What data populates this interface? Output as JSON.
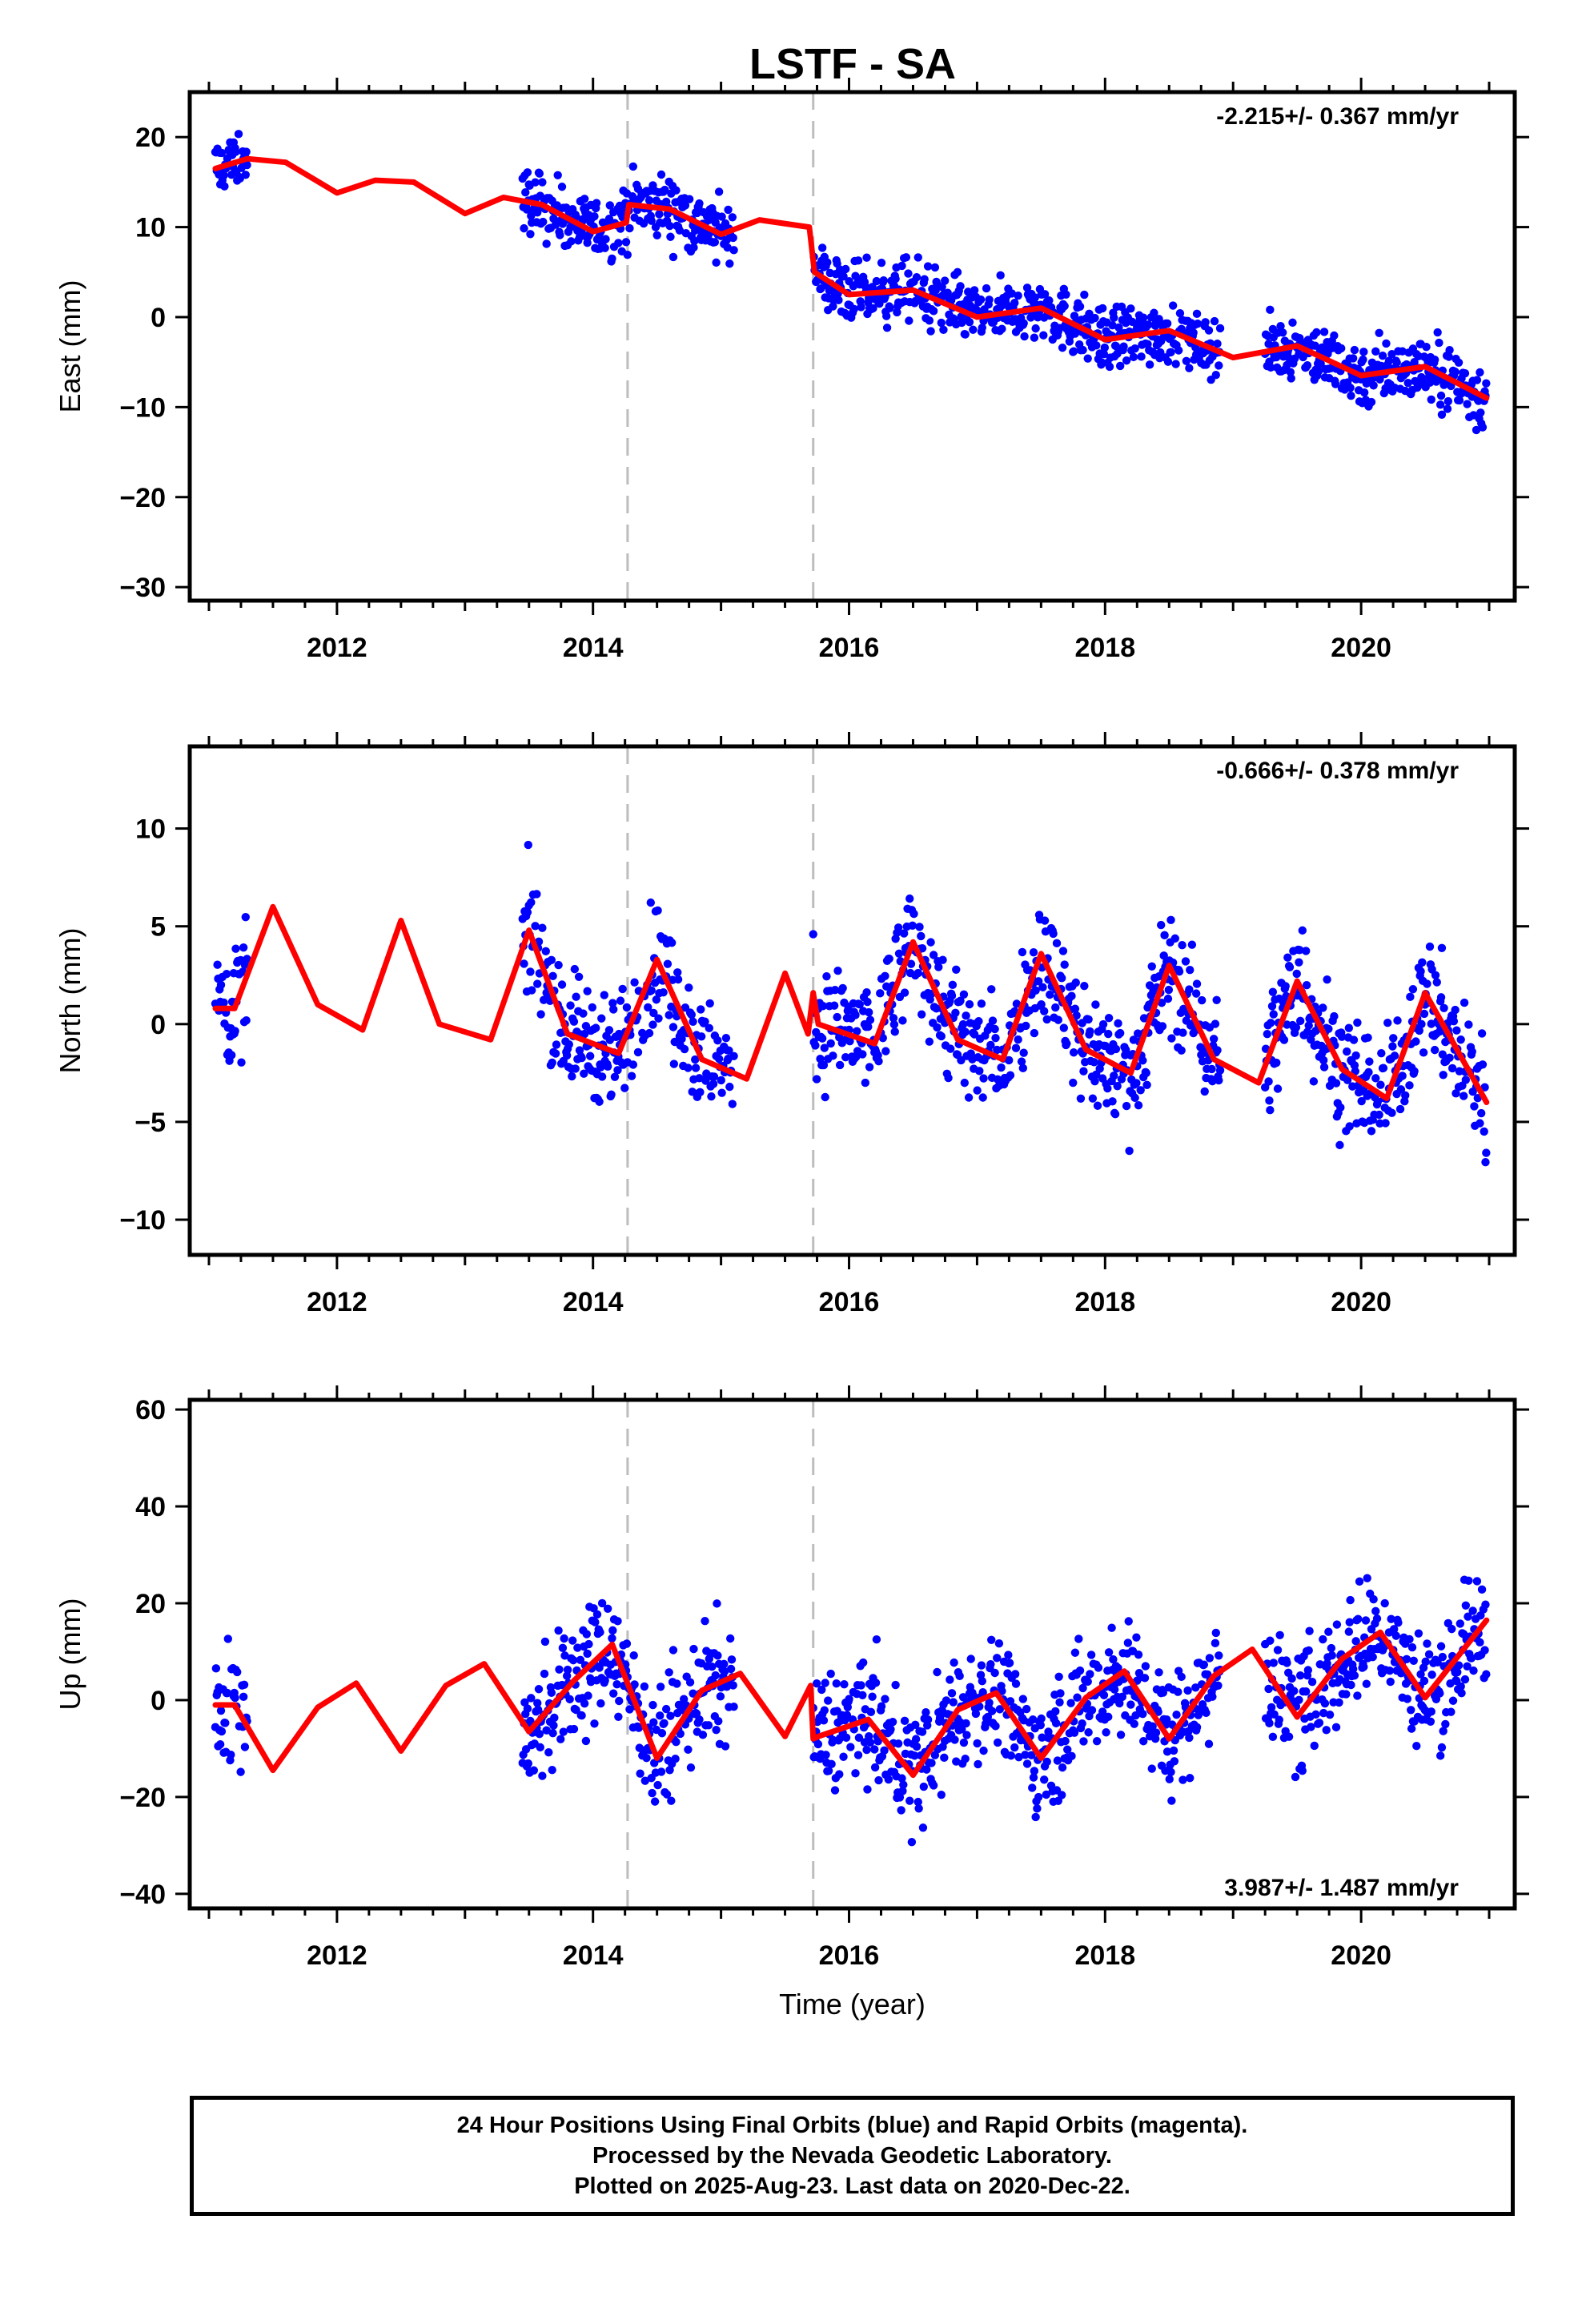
{
  "title": "LSTF - SA",
  "colors": {
    "final_orbit_points": "#0000ff",
    "model_fit": "#ff0000",
    "event_lines": "#bdbdbd",
    "frame": "#000000"
  },
  "footer": {
    "line1": "24 Hour Positions Using Final Orbits (blue) and Rapid Orbits (magenta).",
    "line2": "Processed by the Nevada Geodetic Laboratory.",
    "line3": "Plotted on 2025-Aug-23. Last data on 2020-Dec-22."
  },
  "chart_data": [
    {
      "type": "scatter",
      "ylabel": "East (mm)",
      "xlabel": "",
      "xlim": [
        2010.85,
        2021.2
      ],
      "ylim": [
        -31.5,
        25
      ],
      "x_ticks": [
        2012,
        2014,
        2016,
        2018,
        2020
      ],
      "y_ticks": [
        20,
        10,
        0,
        -10,
        -20,
        -30
      ],
      "y_tick_labels": [
        "20",
        "10",
        "0",
        "−10",
        "−20",
        "−30"
      ],
      "rate_label": "-2.215+/- 0.367 mm/yr",
      "rate_label_position": "top-right",
      "event_lines_x": [
        2014.27,
        2015.72
      ],
      "series": [
        {
          "role": "daily positions",
          "color": "#0000ff",
          "segments": [
            [
              2011.05,
              2011.3
            ],
            [
              2013.45,
              2015.1
            ],
            [
              2015.72,
              2018.9
            ],
            [
              2019.25,
              2020.98
            ]
          ],
          "trend_start": 17.0,
          "rate": -2.215,
          "annual_amp": 1.0,
          "scatter": 2.5
        },
        {
          "role": "model fit",
          "color": "#ff0000",
          "x": [
            2011.05,
            2011.3,
            2011.6,
            2012.0,
            2012.3,
            2012.6,
            2013.0,
            2013.3,
            2013.6,
            2014.0,
            2014.26,
            2014.28,
            2014.6,
            2015.0,
            2015.3,
            2015.69,
            2015.73,
            2016.0,
            2016.5,
            2017.0,
            2017.5,
            2018.0,
            2018.5,
            2019.0,
            2019.5,
            2020.0,
            2020.5,
            2020.98
          ],
          "y": [
            16.5,
            17.6,
            17.2,
            13.8,
            15.2,
            15.0,
            11.5,
            13.3,
            12.5,
            9.5,
            10.5,
            12.5,
            12.0,
            9.2,
            10.8,
            10.0,
            5.0,
            2.5,
            3.0,
            0.0,
            1.0,
            -2.5,
            -1.5,
            -4.5,
            -3.2,
            -6.5,
            -5.5,
            -9.0
          ]
        }
      ]
    },
    {
      "type": "scatter",
      "ylabel": "North (mm)",
      "xlabel": "",
      "xlim": [
        2010.85,
        2021.2
      ],
      "ylim": [
        -11.8,
        14.2
      ],
      "x_ticks": [
        2012,
        2014,
        2016,
        2018,
        2020
      ],
      "y_ticks": [
        10,
        5,
        0,
        -5,
        -10
      ],
      "y_tick_labels": [
        "10",
        "5",
        "0",
        "−5",
        "−10"
      ],
      "rate_label": "-0.666+/- 0.378 mm/yr",
      "rate_label_position": "top-right",
      "event_lines_x": [
        2014.27,
        2015.72
      ],
      "series": [
        {
          "role": "daily positions",
          "color": "#0000ff",
          "segments": [
            [
              2011.05,
              2011.3
            ],
            [
              2013.45,
              2015.1
            ],
            [
              2015.72,
              2018.9
            ],
            [
              2019.25,
              2020.98
            ]
          ],
          "trend_start": 1.5,
          "rate": -0.666,
          "annual_amp": 3.0,
          "scatter": 2.2
        },
        {
          "role": "model fit",
          "color": "#ff0000",
          "x": [
            2011.05,
            2011.2,
            2011.5,
            2011.85,
            2012.2,
            2012.5,
            2012.8,
            2013.2,
            2013.5,
            2013.8,
            2014.2,
            2014.5,
            2014.85,
            2015.2,
            2015.5,
            2015.68,
            2015.72,
            2015.76,
            2016.2,
            2016.5,
            2016.85,
            2017.2,
            2017.5,
            2017.85,
            2018.2,
            2018.5,
            2018.85,
            2019.2,
            2019.5,
            2019.85,
            2020.2,
            2020.5,
            2020.98
          ],
          "y": [
            0.8,
            0.8,
            6.0,
            1.0,
            -0.3,
            5.3,
            0.0,
            -0.8,
            4.8,
            -0.5,
            -1.5,
            3.3,
            -1.8,
            -2.8,
            2.6,
            -0.5,
            1.6,
            0.0,
            -1.0,
            4.2,
            -0.8,
            -1.8,
            3.6,
            -1.3,
            -2.5,
            3.0,
            -1.8,
            -3.0,
            2.2,
            -2.3,
            -3.8,
            1.6,
            -4.0
          ]
        }
      ]
    },
    {
      "type": "scatter",
      "ylabel": "Up (mm)",
      "xlabel": "Time (year)",
      "xlim": [
        2010.85,
        2021.2
      ],
      "ylim": [
        -43,
        62
      ],
      "x_ticks": [
        2012,
        2014,
        2016,
        2018,
        2020
      ],
      "y_ticks": [
        60,
        40,
        20,
        0,
        -20,
        -40
      ],
      "y_tick_labels": [
        "60",
        "40",
        "20",
        "0",
        "−20",
        "−40"
      ],
      "rate_label": "3.987+/- 1.487 mm/yr",
      "rate_label_position": "bottom-right",
      "event_lines_x": [
        2014.27,
        2015.72
      ],
      "series": [
        {
          "role": "daily positions",
          "color": "#0000ff",
          "segments": [
            [
              2011.05,
              2011.3
            ],
            [
              2013.45,
              2015.1
            ],
            [
              2015.72,
              2018.9
            ],
            [
              2019.25,
              2020.98
            ]
          ],
          "trend_start": -2.0,
          "rate": 3.987,
          "annual_amp": 9.0,
          "scatter": 9.0
        },
        {
          "role": "model fit",
          "color": "#ff0000",
          "x": [
            2011.05,
            2011.2,
            2011.5,
            2011.85,
            2012.15,
            2012.5,
            2012.85,
            2013.15,
            2013.5,
            2013.85,
            2014.15,
            2014.5,
            2014.85,
            2015.15,
            2015.5,
            2015.7,
            2015.72,
            2015.76,
            2016.15,
            2016.5,
            2016.85,
            2017.15,
            2017.5,
            2017.85,
            2018.15,
            2018.5,
            2018.85,
            2019.15,
            2019.5,
            2019.85,
            2020.15,
            2020.5,
            2020.98
          ],
          "y": [
            -1.0,
            -1.0,
            -14.5,
            -1.5,
            3.5,
            -10.5,
            3.0,
            7.5,
            -6.5,
            4.0,
            11.5,
            -12.0,
            2.0,
            5.5,
            -7.5,
            3.0,
            -8.0,
            -7.5,
            -4.0,
            -15.5,
            -2.0,
            1.5,
            -12.0,
            0.5,
            6.0,
            -8.0,
            5.0,
            10.5,
            -3.5,
            8.5,
            14.0,
            0.5,
            16.5
          ]
        }
      ]
    }
  ]
}
